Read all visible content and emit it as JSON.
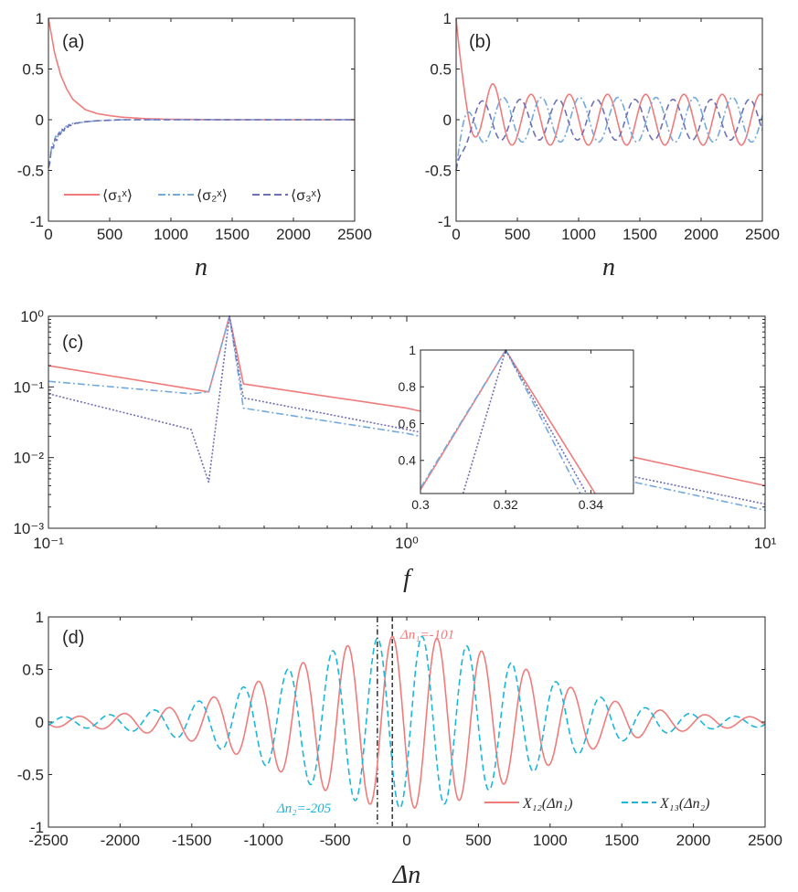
{
  "figure_colors": {
    "series1": "#f07b7b",
    "series2": "#73a9dd",
    "series3": "#6f6fb8",
    "x12": "#f07b7b",
    "x13": "#1bb6d9",
    "axis": "#262626",
    "marker": "#000000"
  },
  "chart_data": [
    {
      "id": "a",
      "type": "line",
      "panel_label": "(a)",
      "xlabel": "n",
      "ylabel": "",
      "xlim": [
        0,
        2500
      ],
      "ylim": [
        -1,
        1
      ],
      "xticks": [
        0,
        500,
        1000,
        1500,
        2000,
        2500
      ],
      "xtick_labels": [
        "0",
        "500",
        "1000",
        "1500",
        "2000",
        "2500"
      ],
      "yticks": [
        -1,
        -0.5,
        0,
        0.5,
        1
      ],
      "ytick_labels": [
        "-1",
        "-0.5",
        "0",
        "0.5",
        "1"
      ],
      "legend": {
        "placement": "bottom-center",
        "entries": [
          "⟨σ₁ˣ⟩",
          "⟨σ₂ˣ⟩",
          "⟨σ₃ˣ⟩"
        ]
      },
      "series": [
        {
          "name": "⟨σ₁ˣ⟩",
          "style": "solid",
          "x": [
            0,
            50,
            100,
            150,
            200,
            300,
            400,
            500,
            600,
            800,
            1000,
            1500,
            2000,
            2500
          ],
          "values": [
            1.0,
            0.66,
            0.44,
            0.3,
            0.2,
            0.1,
            0.06,
            0.04,
            0.025,
            0.01,
            0.004,
            0.0,
            0.0,
            0.0
          ]
        },
        {
          "name": "⟨σ₂ˣ⟩",
          "style": "dashdot",
          "x": [
            0,
            20,
            50,
            100,
            150,
            200,
            300,
            400,
            600,
            1000,
            1500,
            2500
          ],
          "values": [
            -0.5,
            -0.3,
            -0.2,
            -0.12,
            -0.07,
            -0.04,
            -0.02,
            -0.01,
            0.0,
            0.0,
            0.0,
            0.0
          ]
        },
        {
          "name": "⟨σ₃ˣ⟩",
          "style": "dashed",
          "x": [
            0,
            20,
            50,
            100,
            150,
            200,
            300,
            400,
            600,
            1000,
            1500,
            2500
          ],
          "values": [
            -0.5,
            -0.32,
            -0.22,
            -0.12,
            -0.07,
            -0.04,
            -0.02,
            -0.01,
            0.0,
            0.0,
            0.0,
            0.0
          ]
        }
      ]
    },
    {
      "id": "b",
      "type": "line",
      "panel_label": "(b)",
      "xlabel": "n",
      "ylabel": "",
      "xlim": [
        0,
        2500
      ],
      "ylim": [
        -1,
        1
      ],
      "xticks": [
        0,
        500,
        1000,
        1500,
        2000,
        2500
      ],
      "xtick_labels": [
        "0",
        "500",
        "1000",
        "1500",
        "2000",
        "2500"
      ],
      "yticks": [
        -1,
        -0.5,
        0,
        0.5,
        1
      ],
      "ytick_labels": [
        "-1",
        "-0.5",
        "0",
        "0.5",
        "1"
      ],
      "series": [
        {
          "name": "⟨σ₁ˣ⟩",
          "style": "solid",
          "steady_amplitude": 0.25,
          "period": 312,
          "peak_at": 300,
          "peak_value": 0.35,
          "start_value": 1.0
        },
        {
          "name": "⟨σ₂ˣ⟩",
          "style": "dashdot",
          "steady_amplitude": 0.22,
          "period": 312,
          "start_value": -0.5
        },
        {
          "name": "⟨σ₃ˣ⟩",
          "style": "dashed",
          "steady_amplitude": 0.2,
          "period": 312,
          "start_value": -0.5
        }
      ]
    },
    {
      "id": "c",
      "type": "line",
      "panel_label": "(c)",
      "xlabel": "f",
      "ylabel": "",
      "xscale": "log",
      "yscale": "log",
      "xlim": [
        0.1,
        10
      ],
      "ylim": [
        0.001,
        1
      ],
      "xtick_labels": [
        "10⁻¹",
        "10⁰",
        "10¹"
      ],
      "ytick_labels": [
        "10⁻³",
        "10⁻²",
        "10⁻¹",
        "10⁰"
      ],
      "series": [
        {
          "name": "⟨σ₁ˣ⟩",
          "style": "solid",
          "x": [
            0.1,
            0.28,
            0.32,
            0.35,
            1.0,
            10.0
          ],
          "values": [
            0.2,
            0.085,
            1.0,
            0.11,
            0.05,
            0.004
          ]
        },
        {
          "name": "⟨σ₂ˣ⟩",
          "style": "dashdot",
          "x": [
            0.1,
            0.25,
            0.28,
            0.32,
            0.35,
            1.0,
            10.0
          ],
          "values": [
            0.12,
            0.08,
            0.085,
            1.0,
            0.05,
            0.022,
            0.0018
          ]
        },
        {
          "name": "⟨σ₃ˣ⟩",
          "style": "dotted",
          "x": [
            0.1,
            0.25,
            0.28,
            0.32,
            0.35,
            1.0,
            10.0
          ],
          "values": [
            0.08,
            0.025,
            0.0045,
            1.0,
            0.07,
            0.025,
            0.0022
          ]
        }
      ],
      "inset": {
        "xlim": [
          0.3,
          0.35
        ],
        "ylim": [
          0.22,
          1
        ],
        "xticks": [
          0.3,
          0.32,
          0.34
        ],
        "xtick_labels": [
          "0.3",
          "0.32",
          "0.34"
        ],
        "yticks": [
          0.4,
          0.6,
          0.8,
          1
        ],
        "ytick_labels": [
          "0.4",
          "0.6",
          "0.8",
          "1"
        ],
        "series": [
          {
            "name": "⟨σ₁ˣ⟩",
            "style": "solid",
            "x": [
              0.3,
              0.32,
              0.341
            ],
            "values": [
              0.24,
              1.0,
              0.22
            ]
          },
          {
            "name": "⟨σ₂ˣ⟩",
            "style": "dashdot",
            "x": [
              0.3,
              0.32,
              0.3375
            ],
            "values": [
              0.25,
              1.0,
              0.22
            ]
          },
          {
            "name": "⟨σ₃ˣ⟩",
            "style": "dotted",
            "x": [
              0.31,
              0.32,
              0.339
            ],
            "values": [
              0.22,
              1.0,
              0.22
            ]
          }
        ]
      }
    },
    {
      "id": "d",
      "type": "line",
      "panel_label": "(d)",
      "xlabel": "Δn",
      "ylabel": "",
      "xlim": [
        -2500,
        2500
      ],
      "ylim": [
        -1,
        1
      ],
      "xticks": [
        -2500,
        -2000,
        -1500,
        -1000,
        -500,
        0,
        500,
        1000,
        1500,
        2000,
        2500
      ],
      "xtick_labels": [
        "-2500",
        "-2000",
        "-1500",
        "-1000",
        "-500",
        "0",
        "500",
        "1000",
        "1500",
        "2000",
        "2500"
      ],
      "yticks": [
        -1,
        -0.5,
        0,
        0.5,
        1
      ],
      "ytick_labels": [
        "-1",
        "-0.5",
        "0",
        "0.5",
        "1"
      ],
      "legend": {
        "placement": "bottom-right",
        "entries": [
          "X₁₂(Δn₁)",
          "X₁₃(Δn₂)"
        ]
      },
      "series": [
        {
          "name": "X₁₂(Δn₁)",
          "style": "solid",
          "peak_lag": -101,
          "peak_value": 0.72,
          "min_value": -0.83,
          "period": 312
        },
        {
          "name": "X₁₃(Δn₂)",
          "style": "dashed",
          "peak_lag": -205,
          "peak_value": 0.67,
          "min_value": -0.82,
          "period": 312
        }
      ],
      "markers": [
        {
          "x": -205,
          "style": "dashdot",
          "label": "Δn₂=-205"
        },
        {
          "x": -101,
          "style": "dashed",
          "label": "Δn₁=-101"
        }
      ]
    }
  ]
}
